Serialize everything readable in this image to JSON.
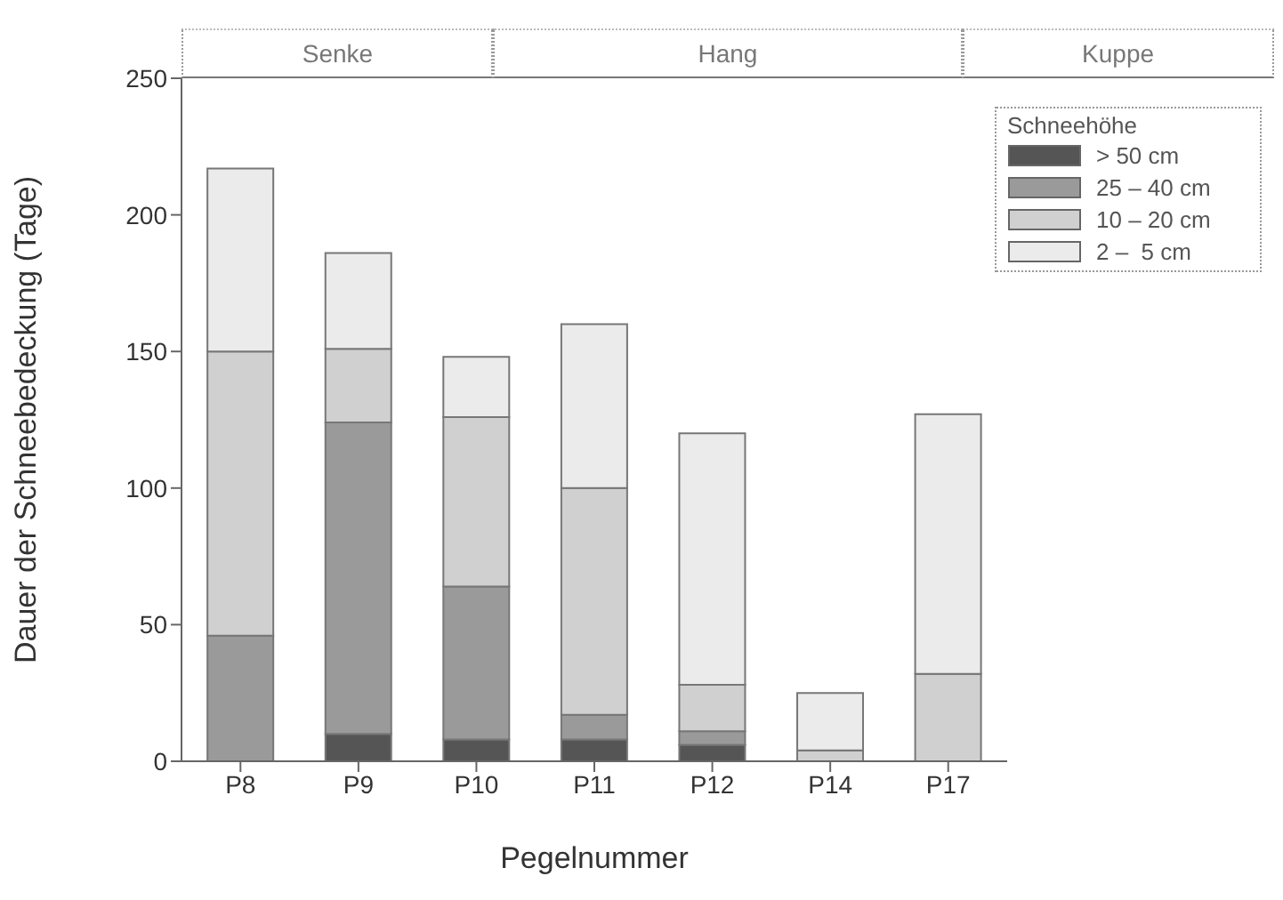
{
  "chart_data": {
    "type": "bar",
    "stacked": true,
    "categories": [
      "P8",
      "P9",
      "P10",
      "P11",
      "P12",
      "P14",
      "P17"
    ],
    "series": [
      {
        "name": "> 50 cm",
        "color": "#555555",
        "values": [
          0,
          10,
          8,
          8,
          6,
          0,
          0
        ]
      },
      {
        "name": "25 – 40 cm",
        "color": "#9a9a9a",
        "values": [
          46,
          114,
          56,
          9,
          5,
          0,
          0
        ]
      },
      {
        "name": "10 – 20 cm",
        "color": "#d0d0d0",
        "values": [
          104,
          27,
          62,
          83,
          17,
          4,
          32
        ]
      },
      {
        "name": "2 –  5 cm",
        "color": "#ebebeb",
        "values": [
          67,
          35,
          22,
          60,
          92,
          21,
          95
        ]
      }
    ],
    "xlabel": "Pegelnummer",
    "ylabel": "Dauer der Schneebedeckung (Tage)",
    "legend_title": "Schneehöhe",
    "legend": "top right",
    "ylim": [
      0,
      250
    ],
    "yticks": [
      0,
      50,
      100,
      150,
      200,
      250
    ],
    "grid": false,
    "annotations": [
      "Senke",
      "Hang",
      "Kuppe"
    ]
  }
}
